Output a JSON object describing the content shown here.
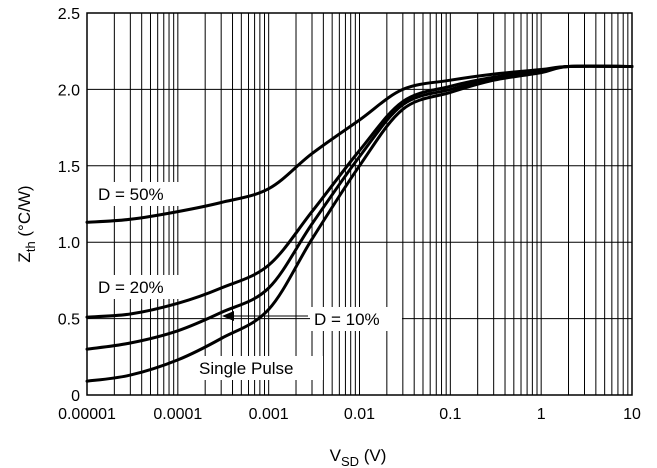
{
  "chart_data": {
    "type": "line",
    "xscale": "log",
    "grid": true,
    "xlim": [
      1e-05,
      10
    ],
    "ylim": [
      0,
      2.5
    ],
    "x_ticks": [
      "0.00001",
      "0.0001",
      "0.001",
      "0.01",
      "0.1",
      "1",
      "10"
    ],
    "y_ticks": [
      "0",
      "0.5",
      "1.0",
      "1.5",
      "2.0",
      "2.5"
    ],
    "xlabel": {
      "main": "V",
      "sub": "SD",
      "tail": " (V)"
    },
    "ylabel": {
      "main": "Z",
      "sub": "th",
      "tail": " (°C/W)"
    },
    "series": [
      {
        "name": "D = 50%",
        "x": [
          1e-05,
          3e-05,
          0.0001,
          0.0003,
          0.001,
          0.003,
          0.01,
          0.03,
          0.1,
          0.3,
          1,
          2,
          10
        ],
        "y": [
          1.13,
          1.15,
          1.2,
          1.26,
          1.35,
          1.58,
          1.8,
          2.0,
          2.06,
          2.1,
          2.13,
          2.15,
          2.15
        ]
      },
      {
        "name": "D = 20%",
        "x": [
          1e-05,
          3e-05,
          0.0001,
          0.0003,
          0.001,
          0.003,
          0.01,
          0.03,
          0.1,
          0.3,
          1,
          2,
          10
        ],
        "y": [
          0.51,
          0.53,
          0.6,
          0.7,
          0.85,
          1.2,
          1.6,
          1.92,
          2.02,
          2.08,
          2.12,
          2.15,
          2.15
        ]
      },
      {
        "name": "D = 10%",
        "x": [
          1e-05,
          3e-05,
          0.0001,
          0.0003,
          0.001,
          0.003,
          0.01,
          0.03,
          0.1,
          0.3,
          1,
          2,
          10
        ],
        "y": [
          0.3,
          0.34,
          0.42,
          0.54,
          0.7,
          1.12,
          1.56,
          1.9,
          2.0,
          2.07,
          2.12,
          2.15,
          2.15
        ]
      },
      {
        "name": "Single Pulse",
        "x": [
          1e-05,
          3e-05,
          0.0001,
          0.0003,
          0.001,
          0.003,
          0.01,
          0.03,
          0.1,
          0.3,
          1,
          2,
          10
        ],
        "y": [
          0.09,
          0.13,
          0.23,
          0.37,
          0.56,
          1.02,
          1.5,
          1.87,
          1.98,
          2.06,
          2.11,
          2.15,
          2.15
        ]
      }
    ],
    "annotations": {
      "d50": "D = 50%",
      "d20": "D = 20%",
      "d10": "D = 10%",
      "single": "Single Pulse"
    }
  }
}
